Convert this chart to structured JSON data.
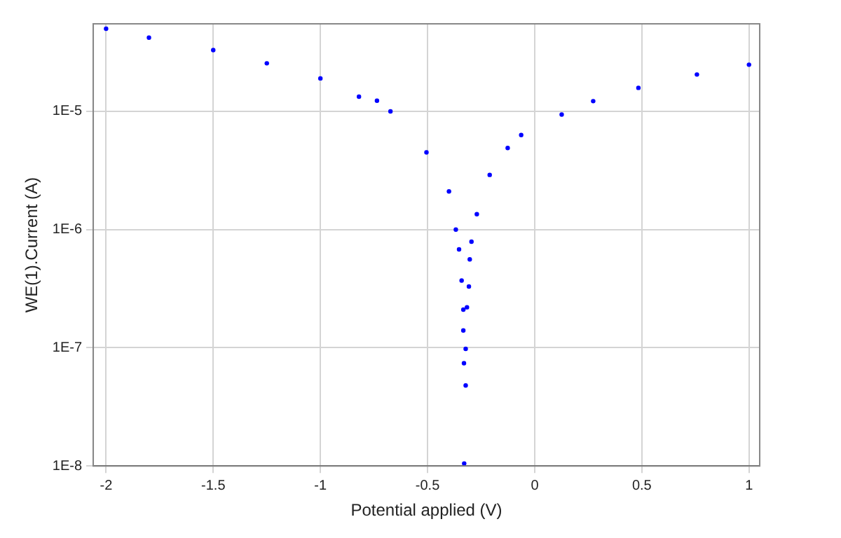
{
  "chart_data": {
    "type": "scatter",
    "xlabel": "Potential applied (V)",
    "ylabel": "WE(1).Current (A)",
    "log": "y",
    "grid": true,
    "legend": false,
    "marker": "circle",
    "xlim": [
      -2.06,
      1.05
    ],
    "xticks": [
      -2,
      -1.5,
      -1,
      -0.5,
      0,
      0.5,
      1
    ],
    "ylim": [
      1e-08,
      5.5e-05
    ],
    "yticks": [
      {
        "value": 1e-08,
        "label": "1E-8"
      },
      {
        "value": 1e-07,
        "label": "1E-7"
      },
      {
        "value": 1e-06,
        "label": "1E-6"
      },
      {
        "value": 1e-05,
        "label": "1E-5"
      }
    ],
    "series": [
      {
        "color": "#0000ff",
        "x": [
          -2,
          -1.8,
          -1.5,
          -1.25,
          -1,
          -0.82,
          -0.736,
          -0.673,
          -0.505,
          -0.4,
          -0.368,
          -0.353,
          -0.341,
          -0.333,
          -0.333,
          -0.33,
          -0.329,
          -0.322,
          -0.322,
          -0.316,
          -0.307,
          -0.303,
          -0.295,
          -0.27,
          -0.21,
          -0.126,
          -0.063,
          0.126,
          0.273,
          0.484,
          0.757,
          1
        ],
        "values": [
          5e-05,
          4.2e-05,
          3.3e-05,
          2.55e-05,
          1.9e-05,
          1.33e-05,
          1.23e-05,
          1e-05,
          4.5e-06,
          2.1e-06,
          1e-06,
          6.8e-07,
          3.7e-07,
          2.1e-07,
          1.4e-07,
          7.4e-08,
          1.05e-08,
          4.8e-08,
          9.8e-08,
          2.2e-07,
          3.3e-07,
          5.6e-07,
          7.9e-07,
          1.35e-06,
          2.9e-06,
          4.9e-06,
          6.3e-06,
          9.4e-06,
          1.22e-05,
          1.58e-05,
          2.05e-05,
          2.48e-05
        ]
      }
    ]
  }
}
